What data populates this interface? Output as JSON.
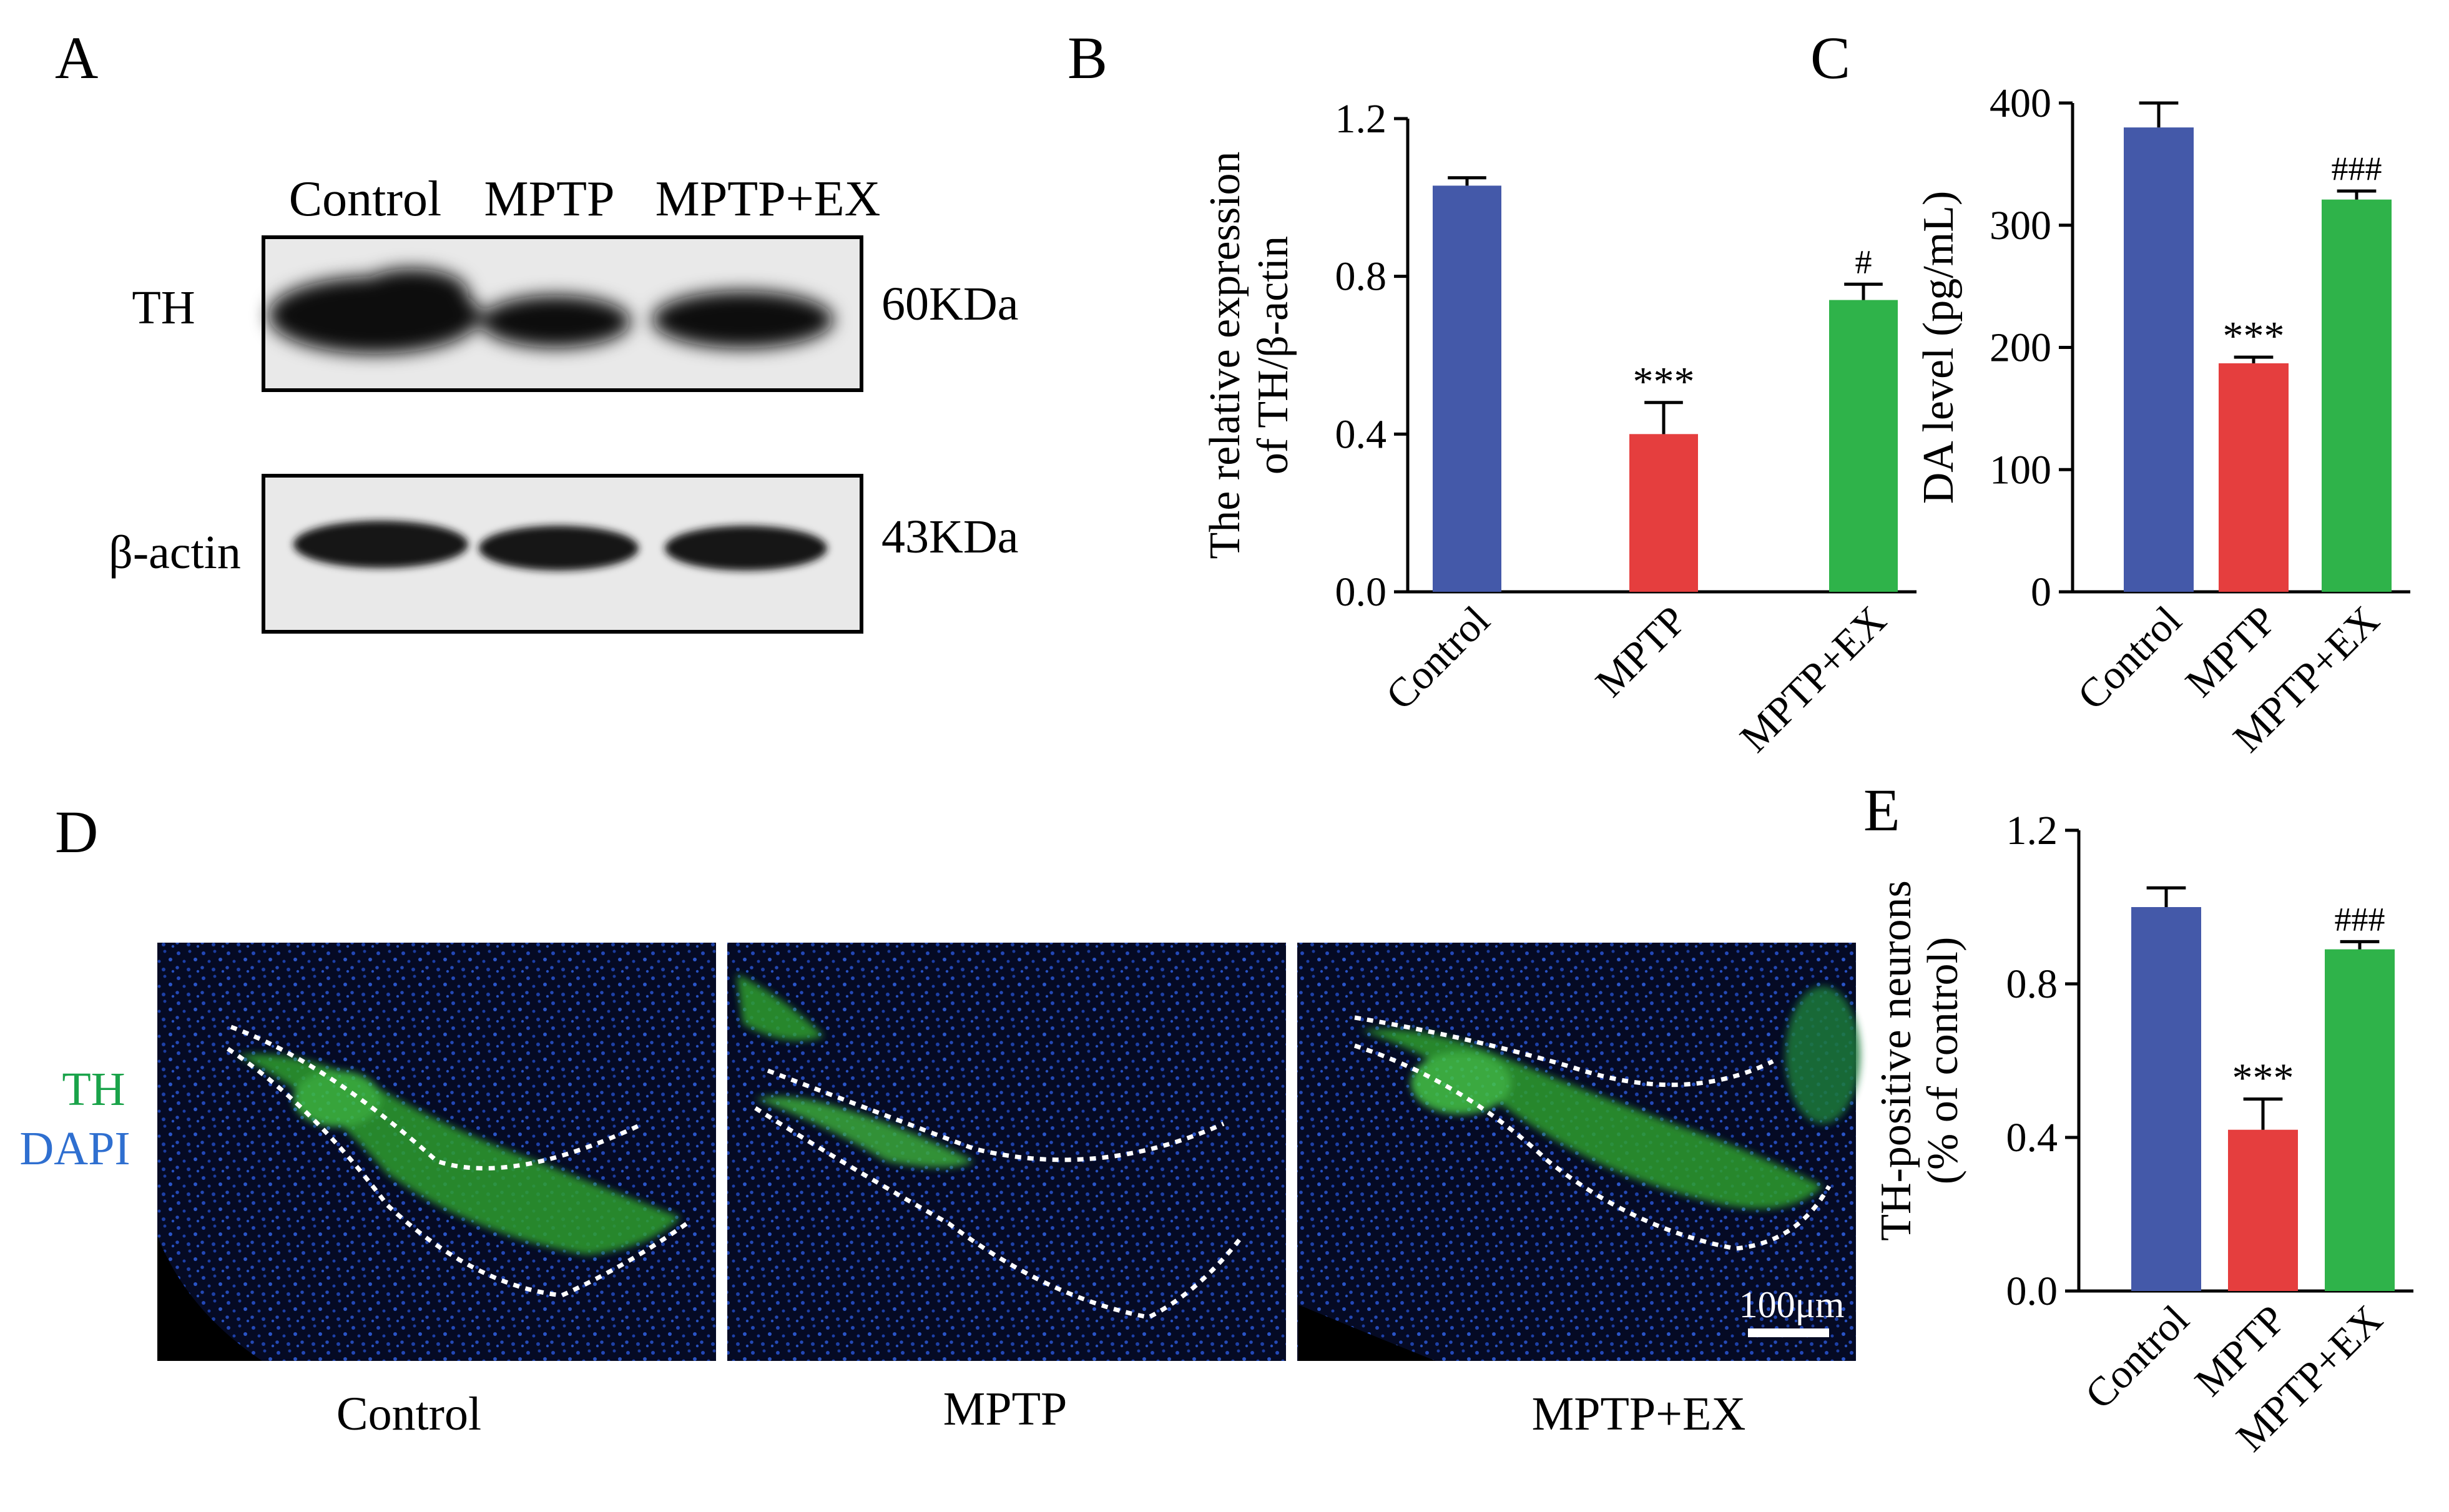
{
  "panels": {
    "A": {
      "letter": "A",
      "lanes": [
        "Control",
        "MPTP",
        "MPTP+EX"
      ],
      "blots": [
        {
          "protein": "TH",
          "size": "60KDa"
        },
        {
          "protein": "β-actin",
          "size": "43KDa"
        }
      ]
    },
    "D": {
      "letter": "D",
      "stain_labels": [
        {
          "text": "TH",
          "color": "#1aa34a"
        },
        {
          "text": "DAPI",
          "color": "#2f6fd0"
        }
      ],
      "conditions": [
        "Control",
        "MPTP",
        "MPTP+EX"
      ],
      "scale_bar": "100μm"
    }
  },
  "colors": {
    "control": "#4459a9",
    "mptp": "#e53e3e",
    "mptp_ex": "#2fb34a"
  },
  "chart_data": [
    {
      "panel": "B",
      "type": "bar",
      "categories": [
        "Control",
        "MPTP",
        "MPTP+EX"
      ],
      "values": [
        1.03,
        0.4,
        0.74
      ],
      "errors": [
        0.02,
        0.08,
        0.04
      ],
      "significance": [
        "",
        "***",
        "#"
      ],
      "ylabel": [
        "The relative expression",
        "of TH/β-actin"
      ],
      "ylim": [
        0,
        1.2
      ],
      "yticks": [
        0.0,
        0.4,
        0.8,
        1.2
      ],
      "ytick_labels": [
        "0.0",
        "0.4",
        "0.8",
        "1.2"
      ],
      "colors": [
        "#4459a9",
        "#e53e3e",
        "#2fb34a"
      ]
    },
    {
      "panel": "C",
      "type": "bar",
      "categories": [
        "Control",
        "MPTP",
        "MPTP+EX"
      ],
      "values": [
        380,
        187,
        321
      ],
      "errors": [
        20,
        5,
        7
      ],
      "significance": [
        "",
        "***",
        "###"
      ],
      "ylabel": [
        "DA level (pg/mL)"
      ],
      "ylim": [
        0,
        400
      ],
      "yticks": [
        0,
        100,
        200,
        300,
        400
      ],
      "ytick_labels": [
        "0",
        "100",
        "200",
        "300",
        "400"
      ],
      "colors": [
        "#4459a9",
        "#e53e3e",
        "#2fb34a"
      ]
    },
    {
      "panel": "E",
      "type": "bar",
      "categories": [
        "Control",
        "MPTP",
        "MPTP+EX"
      ],
      "values": [
        1.0,
        0.42,
        0.89
      ],
      "errors": [
        0.05,
        0.08,
        0.02
      ],
      "significance": [
        "",
        "***",
        "###"
      ],
      "ylabel": [
        "TH-positive neurons",
        "(% of control)"
      ],
      "ylim": [
        0,
        1.2
      ],
      "yticks": [
        0.0,
        0.4,
        0.8,
        1.2
      ],
      "ytick_labels": [
        "0.0",
        "0.4",
        "0.8",
        "1.2"
      ],
      "colors": [
        "#4459a9",
        "#e53e3e",
        "#2fb34a"
      ]
    }
  ]
}
